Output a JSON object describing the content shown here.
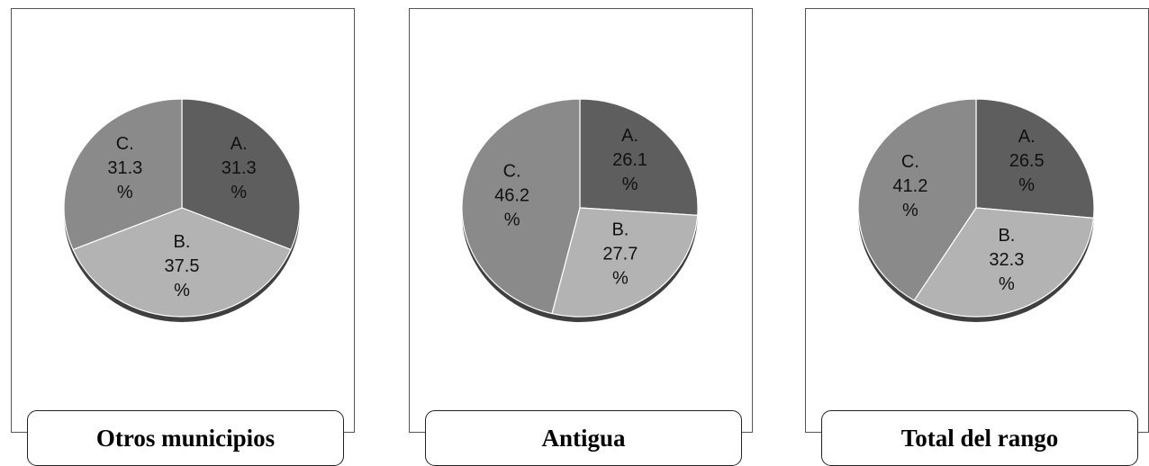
{
  "chart_data": [
    {
      "type": "pie",
      "title": "Otros municipios",
      "slices": [
        {
          "label": "A.",
          "value": 31.3
        },
        {
          "label": "B.",
          "value": 37.5
        },
        {
          "label": "C.",
          "value": 31.3
        }
      ],
      "label_suffix": "%"
    },
    {
      "type": "pie",
      "title": "Antigua",
      "slices": [
        {
          "label": "A.",
          "value": 26.1
        },
        {
          "label": "B.",
          "value": 27.7
        },
        {
          "label": "C.",
          "value": 46.2
        }
      ],
      "label_suffix": "%"
    },
    {
      "type": "pie",
      "title": "Total del rango",
      "slices": [
        {
          "label": "A.",
          "value": 26.5
        },
        {
          "label": "B.",
          "value": 32.3
        },
        {
          "label": "C.",
          "value": 41.2
        }
      ],
      "label_suffix": "%"
    }
  ],
  "colors": {
    "A": "#5e5e5e",
    "B": "#b3b3b3",
    "C": "#8a8a8a",
    "shadow": "#3f3f3f"
  }
}
